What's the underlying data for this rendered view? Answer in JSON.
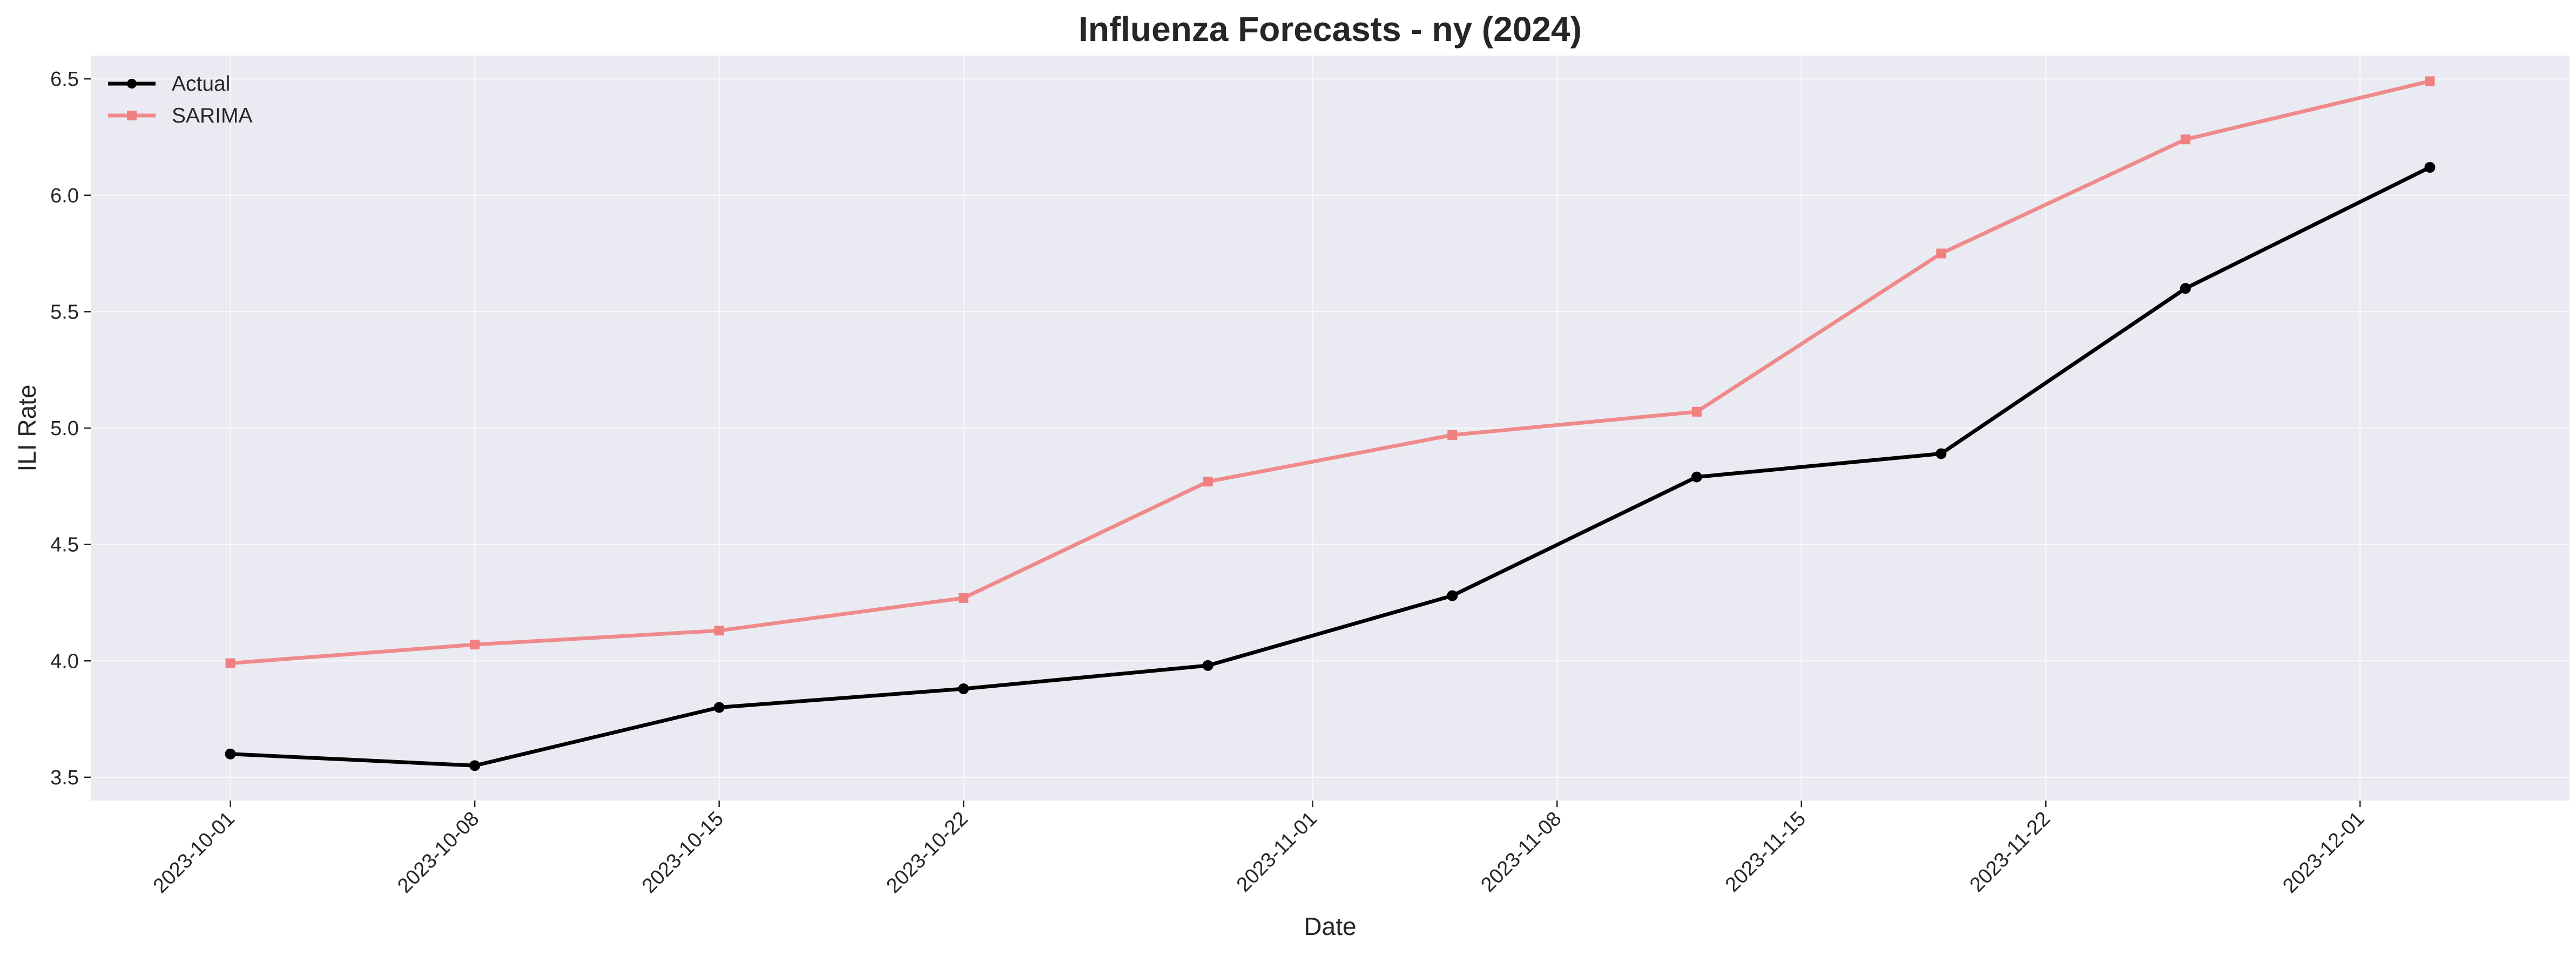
{
  "chart_data": {
    "type": "line",
    "title": "Influenza Forecasts - ny (2024)",
    "xlabel": "Date",
    "ylabel": "ILI Rate",
    "x_type": "date",
    "xlim": [
      "2023-09-27",
      "2023-12-07"
    ],
    "ylim": [
      3.4,
      6.6
    ],
    "x_ticks": [
      "2023-10-01",
      "2023-10-08",
      "2023-10-15",
      "2023-10-22",
      "2023-11-01",
      "2023-11-08",
      "2023-11-15",
      "2023-11-22",
      "2023-12-01"
    ],
    "y_ticks": [
      "3.5",
      "4.0",
      "4.5",
      "5.0",
      "5.5",
      "6.0",
      "6.5"
    ],
    "grid": true,
    "legend_position": "top-left",
    "x": [
      "2023-10-01",
      "2023-10-08",
      "2023-10-15",
      "2023-10-22",
      "2023-10-29",
      "2023-11-05",
      "2023-11-12",
      "2023-11-19",
      "2023-11-26",
      "2023-12-03"
    ],
    "series": [
      {
        "name": "Actual",
        "color": "#000000",
        "marker": "circle",
        "values": [
          3.6,
          3.55,
          3.8,
          3.88,
          3.98,
          4.28,
          4.79,
          4.89,
          5.6,
          6.12
        ]
      },
      {
        "name": "SARIMA",
        "color": "#f08080",
        "marker": "square",
        "values": [
          3.99,
          4.07,
          4.13,
          4.27,
          4.77,
          4.97,
          5.07,
          5.75,
          6.24,
          6.49
        ]
      }
    ],
    "colors": {
      "plot_background": "#eaeaf2",
      "text": "#262626"
    }
  }
}
